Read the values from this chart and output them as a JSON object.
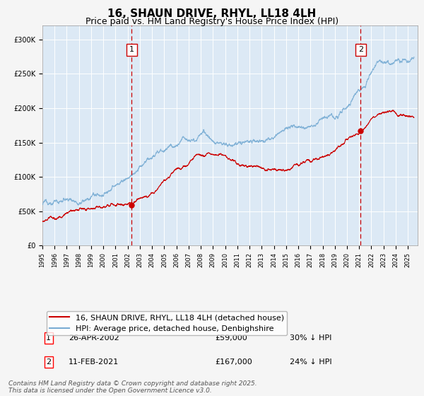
{
  "title": "16, SHAUN DRIVE, RHYL, LL18 4LH",
  "subtitle": "Price paid vs. HM Land Registry's House Price Index (HPI)",
  "ylim": [
    0,
    320000
  ],
  "yticks": [
    0,
    50000,
    100000,
    150000,
    200000,
    250000,
    300000
  ],
  "ytick_labels": [
    "£0",
    "£50K",
    "£100K",
    "£150K",
    "£200K",
    "£250K",
    "£300K"
  ],
  "xlim_start": 1995.0,
  "xlim_end": 2025.8,
  "plot_bg_color": "#dce9f5",
  "fig_bg_color": "#f5f5f5",
  "grid_color": "#ffffff",
  "red_line_color": "#cc0000",
  "blue_line_color": "#7aadd4",
  "marker1_date": 2002.32,
  "marker1_price": 59000,
  "marker2_date": 2021.12,
  "marker2_price": 167000,
  "legend_entry1": "16, SHAUN DRIVE, RHYL, LL18 4LH (detached house)",
  "legend_entry2": "HPI: Average price, detached house, Denbighshire",
  "annotation1_date": "26-APR-2002",
  "annotation1_price": "£59,000",
  "annotation1_hpi": "30% ↓ HPI",
  "annotation2_date": "11-FEB-2021",
  "annotation2_price": "£167,000",
  "annotation2_hpi": "24% ↓ HPI",
  "footnote": "Contains HM Land Registry data © Crown copyright and database right 2025.\nThis data is licensed under the Open Government Licence v3.0.",
  "title_fontsize": 11,
  "subtitle_fontsize": 9,
  "tick_fontsize": 7,
  "legend_fontsize": 8,
  "annotation_fontsize": 8
}
